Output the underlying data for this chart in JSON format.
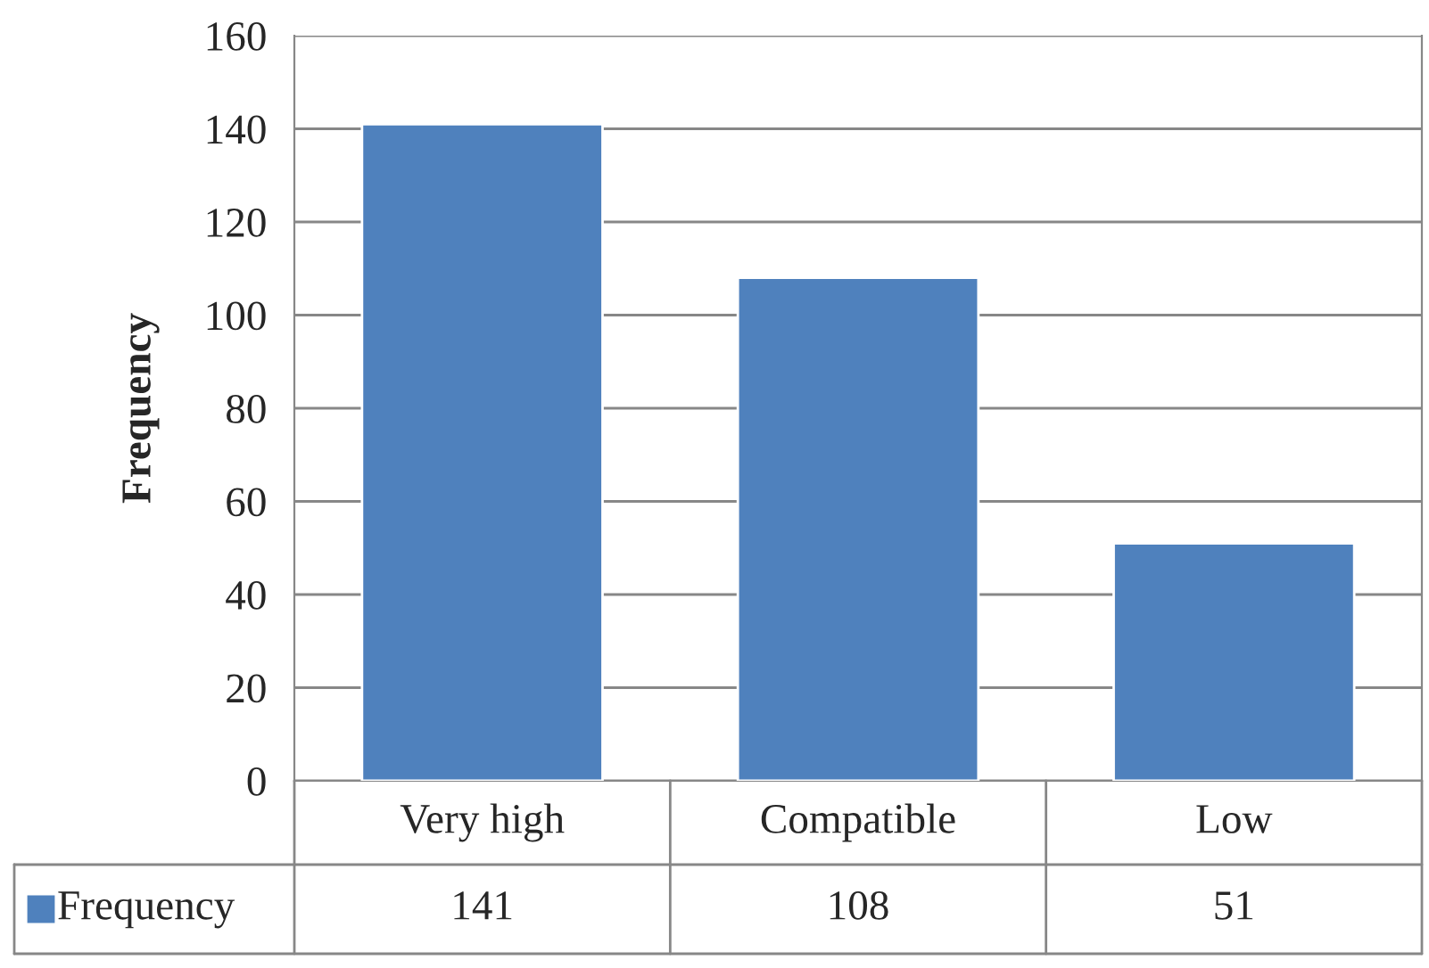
{
  "chart_data": {
    "type": "bar",
    "ylabel": "Frequency",
    "categories": [
      "Very high",
      "Compatible",
      "Low"
    ],
    "series": [
      {
        "name": "Frequency",
        "color": "#4f81bd",
        "values": [
          141,
          108,
          51
        ]
      }
    ],
    "ylim": [
      0,
      160
    ],
    "yticks": [
      0,
      20,
      40,
      60,
      80,
      100,
      120,
      140,
      160
    ],
    "grid": "y",
    "legend": "bottom",
    "data_labels": true
  }
}
